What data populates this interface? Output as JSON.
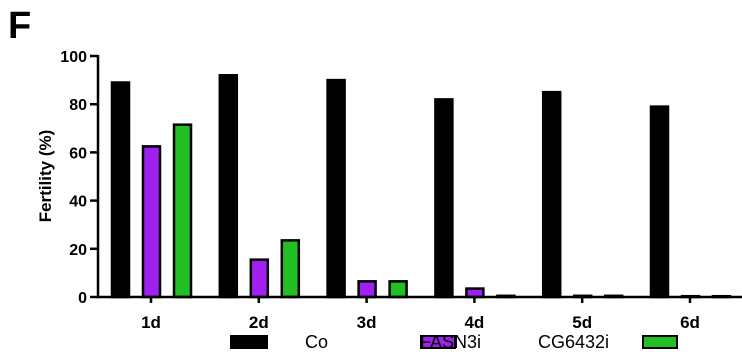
{
  "panel_label": "F",
  "chart_data": {
    "type": "bar",
    "title": "",
    "xlabel": "",
    "ylabel": "Fertility (%)",
    "ylim": [
      0,
      100
    ],
    "yticks": [
      "0",
      "20",
      "40",
      "60",
      "80",
      "100"
    ],
    "categories": [
      "1d",
      "2d",
      "3d",
      "4d",
      "5d",
      "6d"
    ],
    "series": [
      {
        "name": "Co",
        "color": "#000000",
        "values": [
          89,
          92,
          90,
          82,
          85,
          79
        ]
      },
      {
        "name": "FASN3i",
        "color": "#a020f0",
        "values": [
          62.5,
          15.5,
          6.5,
          3.5,
          0.5,
          0
        ]
      },
      {
        "name": "CG6432i",
        "color": "#22c022",
        "values": [
          71.5,
          23.5,
          6.5,
          0.5,
          0.5,
          0
        ]
      }
    ],
    "legend_position": "bottom",
    "grid": false
  }
}
